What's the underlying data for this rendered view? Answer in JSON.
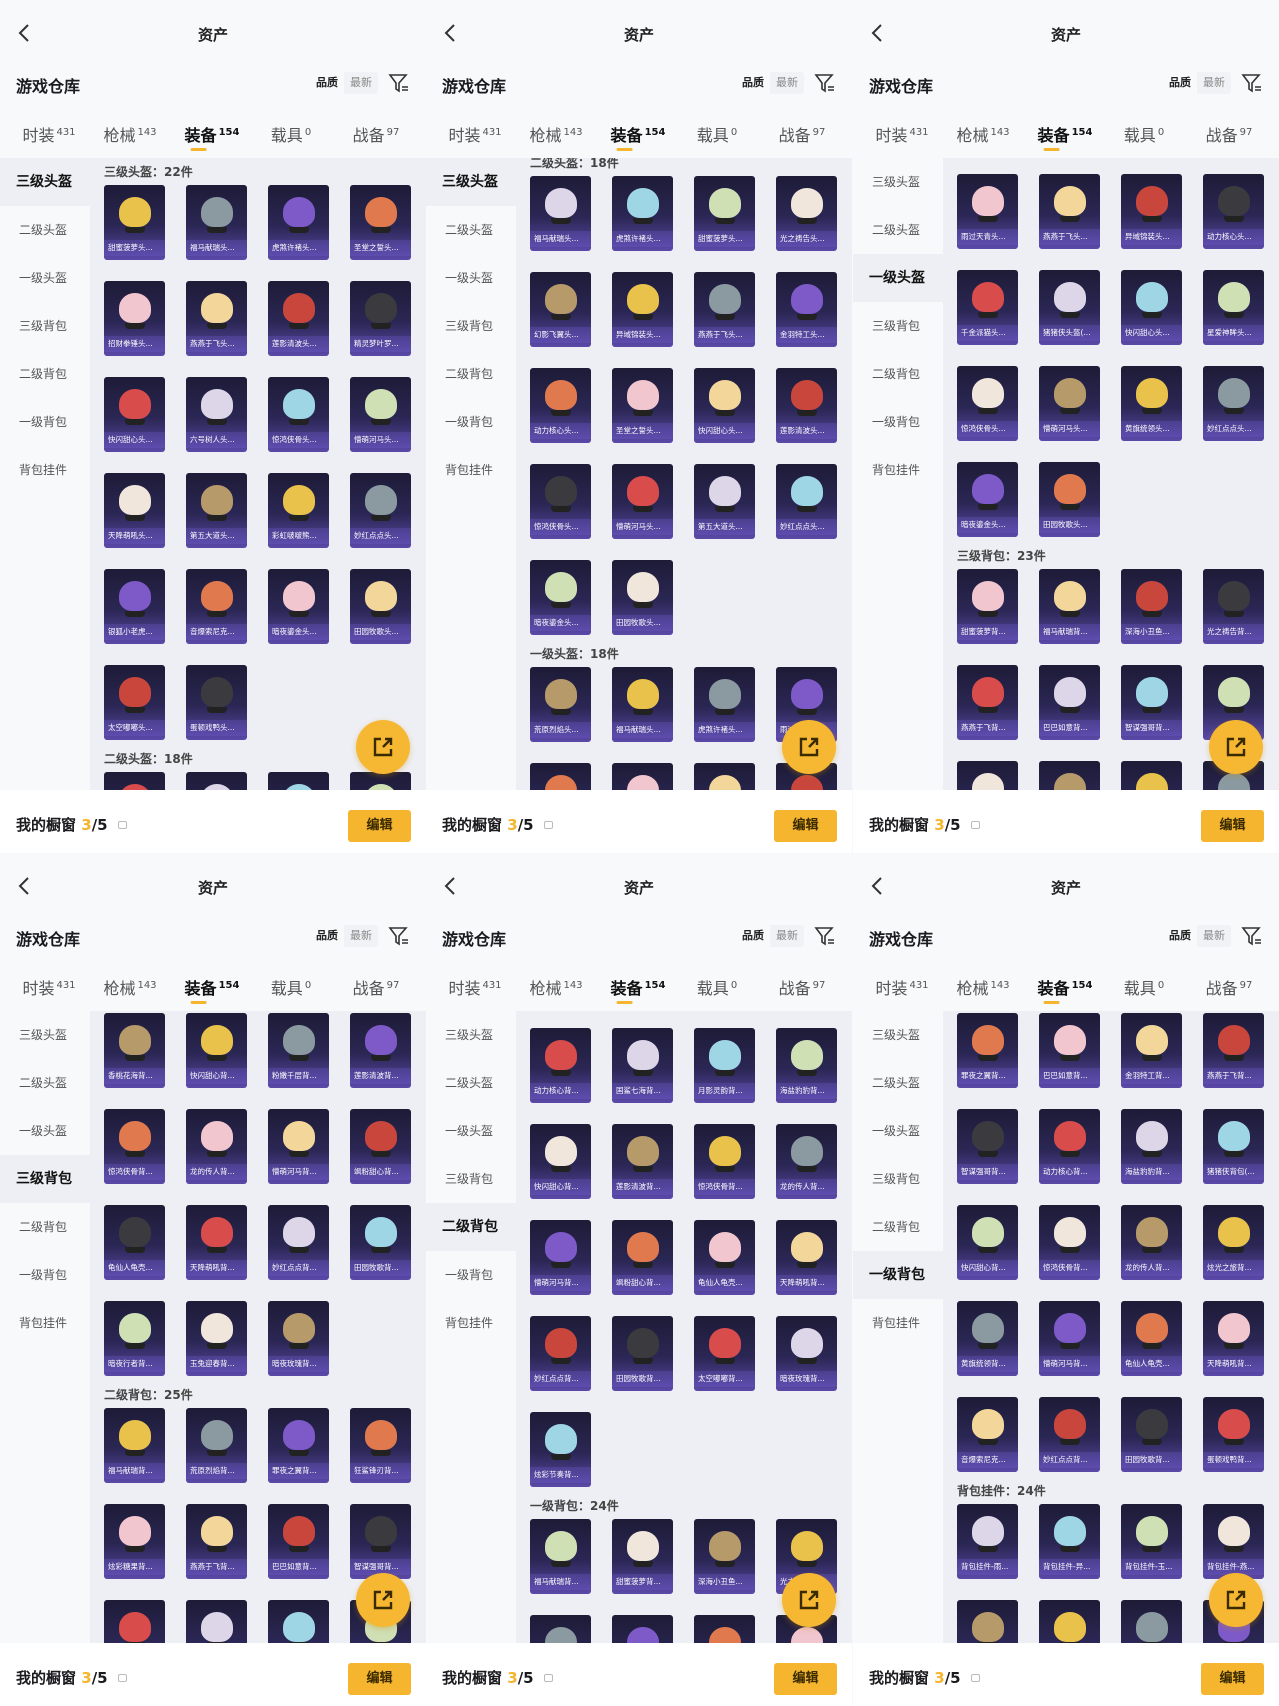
{
  "common": {
    "title": "资产",
    "back_icon": "chevron-left-icon",
    "warehouse_label": "游戏仓库",
    "sort": {
      "quality": "品质",
      "latest": "最新"
    },
    "filter_icon": "filter-icon",
    "tabs": [
      {
        "label": "时装",
        "count": "431"
      },
      {
        "label": "枪械",
        "count": "143"
      },
      {
        "label": "装备",
        "count": "154"
      },
      {
        "label": "载具",
        "count": "0"
      },
      {
        "label": "战备",
        "count": "97"
      }
    ],
    "active_tab": 2,
    "sidebar": [
      "三级头盔",
      "二级头盔",
      "一级头盔",
      "三级背包",
      "二级背包",
      "一级背包",
      "背包挂件"
    ],
    "showcase": {
      "label": "我的橱窗",
      "used": "3",
      "total": "/5"
    },
    "edit_label": "编辑",
    "fab_icon": "share-icon",
    "accent": "#f5b52e",
    "tile_bg": [
      "#1d1b36",
      "#5a48a8"
    ]
  },
  "panels": [
    {
      "active_sidebar": 0,
      "blocks": [
        {
          "type": "header",
          "text": "三级头盔：22件"
        },
        {
          "type": "items",
          "items": [
            "甜蜜菠萝头...",
            "福马献瑞头...",
            "虎煞许褚头...",
            "圣堂之誓头...",
            "招财拳锤头...",
            "燕燕于飞头...",
            "莲影清波头...",
            "精灵梦叶罗...",
            "快闪甜心头...",
            "六号树人头...",
            "惊鸿侠骨头...",
            "懵萌河马头...",
            "天降萌吼头...",
            "第五大道头...",
            "彩虹啵啵熊...",
            "妙红点点头...",
            "银狐小老虎...",
            "音爆索尼克...",
            "暗夜鎏金头...",
            "田园牧歌头...",
            "太空嘟嘟头...",
            "蛋顿戏鸭头..."
          ]
        },
        {
          "type": "header",
          "text": "二级头盔：18件"
        },
        {
          "type": "items",
          "items": [
            "",
            "",
            "",
            ""
          ]
        }
      ]
    },
    {
      "active_sidebar": 0,
      "blocks": [
        {
          "type": "header",
          "text": "二级头盔：18件"
        },
        {
          "type": "items",
          "items": [
            "福马献瑞头...",
            "虎煞许褚头...",
            "甜蜜菠萝头...",
            "光之祷告头...",
            "幻影飞翼头...",
            "异域锦装头...",
            "燕燕于飞头...",
            "金羽特工头...",
            "动力核心头...",
            "圣堂之誓头...",
            "快闪甜心头...",
            "莲影清波头...",
            "惊鸿侠骨头...",
            "懵萌河马头...",
            "第五大道头...",
            "妙红点点头...",
            "暗夜鎏金头...",
            "田园牧歌头..."
          ]
        },
        {
          "type": "header",
          "text": "一级头盔：18件"
        },
        {
          "type": "items",
          "items": [
            "荒原烈焰头...",
            "福马献瑞头...",
            "虎煞许褚头...",
            "雨过天青头...",
            "",
            "",
            "",
            ""
          ]
        }
      ]
    },
    {
      "active_sidebar": 2,
      "blocks": [
        {
          "type": "items",
          "items": [
            "雨过天青头...",
            "燕燕于飞头...",
            "异域锦装头...",
            "动力核心头...",
            "千金派猫头...",
            "猪猪侠头盔(...",
            "快闪甜心头...",
            "星爱神眸头...",
            "惊鸿侠骨头...",
            "懵萌河马头...",
            "黄旗统领头...",
            "妙红点点头...",
            "暗夜鎏金头...",
            "田园牧歌头..."
          ]
        },
        {
          "type": "header",
          "text": "三级背包：23件"
        },
        {
          "type": "items",
          "items": [
            "甜蜜菠萝背...",
            "福马献瑞背...",
            "深海小丑鱼...",
            "光之祷告背...",
            "燕燕于飞背...",
            "巴巴如意背...",
            "智谋强哥背...",
            "",
            "",
            "",
            "",
            ""
          ]
        }
      ]
    },
    {
      "active_sidebar": 3,
      "blocks": [
        {
          "type": "items",
          "items": [
            "香桃花海背...",
            "快闪甜心背...",
            "粉嫩千层背...",
            "莲影清波背...",
            "惊鸿侠骨背...",
            "龙的传人背...",
            "懵萌河马背...",
            "飒粉甜心背...",
            "龟仙人龟壳...",
            "天降萌吼背...",
            "妙红点点背...",
            "田园牧歌背...",
            "暗夜行者背...",
            "玉兔迎春背...",
            "暗夜玫瑰背..."
          ]
        },
        {
          "type": "header",
          "text": "二级背包：25件"
        },
        {
          "type": "items",
          "items": [
            "福马献瑞背...",
            "荒原烈焰背...",
            "罪夜之翼背...",
            "狂鲨锋刃背...",
            "炫彩糖果背...",
            "燕燕于飞背...",
            "巴巴如意背...",
            "智谋强哥背...",
            "",
            "",
            "",
            ""
          ]
        }
      ]
    },
    {
      "active_sidebar": 4,
      "blocks": [
        {
          "type": "items",
          "items": [
            "动力核心背...",
            "国鲨七海背...",
            "月影灵韵背...",
            "海盐豹豹背...",
            "快闪甜心背...",
            "莲影清波背...",
            "惊鸿侠骨背...",
            "龙的传人背...",
            "懵萌河马背...",
            "飒粉甜心背...",
            "龟仙人龟壳...",
            "天降萌吼背...",
            "妙红点点背...",
            "田园牧歌背...",
            "太空嘟嘟背...",
            "暗夜玫瑰背...",
            "炫彩节奏背..."
          ]
        },
        {
          "type": "header",
          "text": "一级背包：24件"
        },
        {
          "type": "items",
          "items": [
            "福马献瑞背...",
            "甜蜜菠萝背...",
            "深海小丑鱼...",
            "光之祷告背...",
            "",
            "",
            "",
            ""
          ]
        }
      ]
    },
    {
      "active_sidebar": 5,
      "blocks": [
        {
          "type": "items",
          "items": [
            "罪夜之翼背...",
            "巴巴如意背...",
            "金羽特工背...",
            "燕燕于飞背...",
            "智谋强哥背...",
            "动力核心背...",
            "海盐豹豹背...",
            "猪猪侠背包(...",
            "快闪甜心背...",
            "惊鸿侠骨背...",
            "龙的传人背...",
            "炫光之旅背...",
            "黄旗统领背...",
            "懵萌河马背...",
            "龟仙人龟壳...",
            "天降萌吼背...",
            "音爆索尼克...",
            "妙红点点背...",
            "田园牧歌背...",
            "蛋顿戏鸭背..."
          ]
        },
        {
          "type": "header",
          "text": "背包挂件：24件"
        },
        {
          "type": "items",
          "items": [
            "背包挂件-雨...",
            "背包挂件-异...",
            "背包挂件-玉...",
            "背包挂件-燕...",
            "",
            "",
            "",
            ""
          ]
        }
      ]
    }
  ]
}
